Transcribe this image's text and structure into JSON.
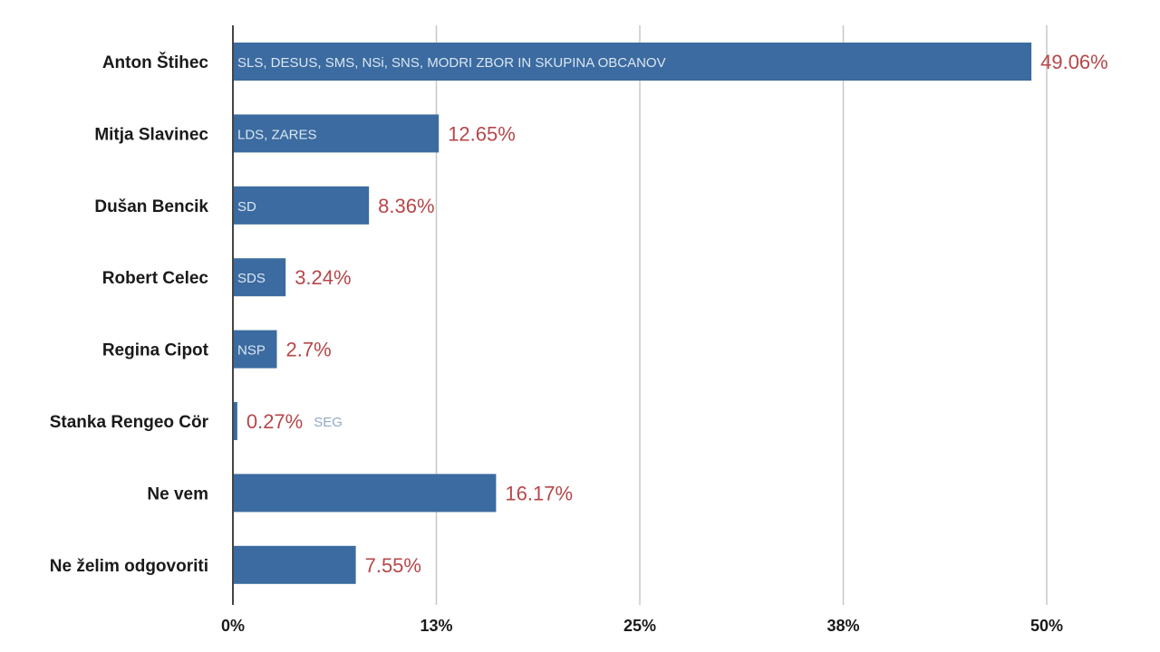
{
  "chart_data": {
    "type": "bar",
    "orientation": "horizontal",
    "title": "",
    "xlabel": "",
    "ylabel": "",
    "xlim": [
      0,
      50
    ],
    "grid": true,
    "ticks": [
      {
        "value": 0,
        "label": "0%"
      },
      {
        "value": 12.5,
        "label": "13%"
      },
      {
        "value": 25,
        "label": "25%"
      },
      {
        "value": 37.5,
        "label": "38%"
      },
      {
        "value": 50,
        "label": "50%"
      }
    ],
    "categories": [
      "Anton Štihec",
      "Mitja Slavinec",
      "Dušan Bencik",
      "Robert Celec",
      "Regina Cipot",
      "Stanka Rengeo Cör",
      "Ne vem",
      "Ne želim odgovoriti"
    ],
    "values": [
      49.06,
      12.65,
      8.36,
      3.24,
      2.7,
      0.27,
      16.17,
      7.55
    ],
    "value_labels": [
      "49.06%",
      "12.65%",
      "8.36%",
      "3.24%",
      "2.7%",
      "0.27%",
      "16.17%",
      "7.55%"
    ],
    "party_labels": [
      "SLS, DESUS, SMS, NSi, SNS, MODRI ZBOR IN SKUPINA OBCANOV",
      "LDS, ZARES",
      "SD",
      "SDS",
      "NSP",
      "SEG",
      "",
      ""
    ],
    "colors": {
      "bar": "#3b6ba0",
      "value_label": "#b5474a",
      "grid": "#c8c8c8",
      "axis": "#444444"
    }
  }
}
